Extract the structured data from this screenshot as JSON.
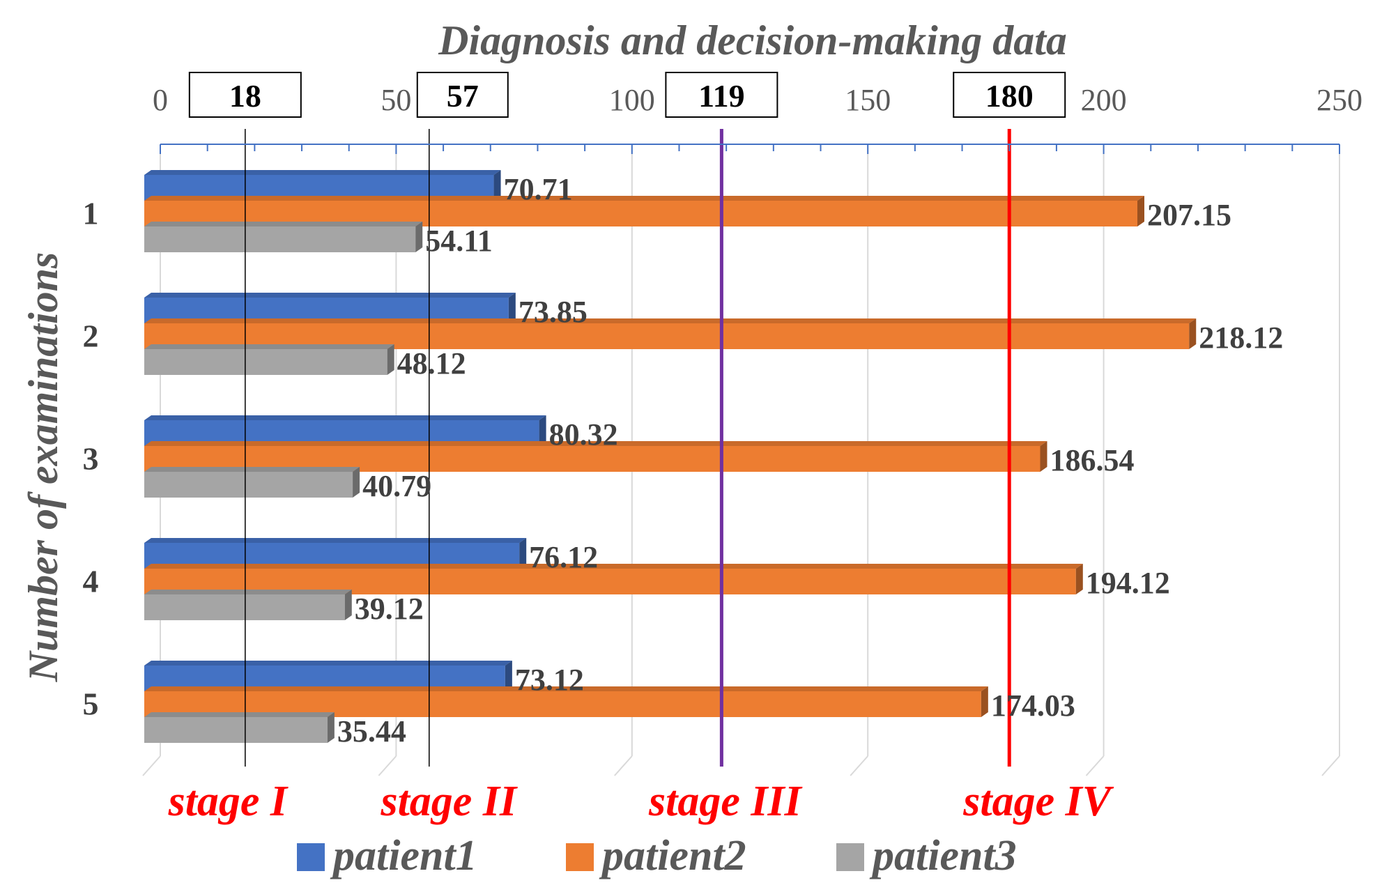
{
  "chart_data": {
    "type": "bar",
    "orientation": "horizontal",
    "title": "Diagnosis and decision-making data",
    "ylabel": "Number of examinations",
    "xlabel": "",
    "xlim": [
      0,
      250
    ],
    "x_ticks": [
      0,
      50,
      100,
      150,
      200,
      250
    ],
    "categories": [
      "1",
      "2",
      "3",
      "4",
      "5"
    ],
    "series": [
      {
        "name": "patient1",
        "color": "#4472c4",
        "values": [
          70.71,
          73.85,
          80.32,
          76.12,
          73.12
        ]
      },
      {
        "name": "patient2",
        "color": "#ed7d31",
        "values": [
          207.15,
          218.12,
          186.54,
          194.12,
          174.03
        ]
      },
      {
        "name": "patient3",
        "color": "#a5a5a5",
        "values": [
          54.11,
          48.12,
          40.79,
          39.12,
          35.44
        ]
      }
    ],
    "thresholds": [
      {
        "value": 18,
        "label": "18",
        "stage": "stage I",
        "color": "#000000"
      },
      {
        "value": 57,
        "label": "57",
        "stage": "stage II",
        "color": "#000000"
      },
      {
        "value": 119,
        "label": "119",
        "stage": "stage III",
        "color": "#7030a0"
      },
      {
        "value": 180,
        "label": "180",
        "stage": "stage IV",
        "color": "#ff0000"
      }
    ],
    "legend_position": "bottom"
  }
}
